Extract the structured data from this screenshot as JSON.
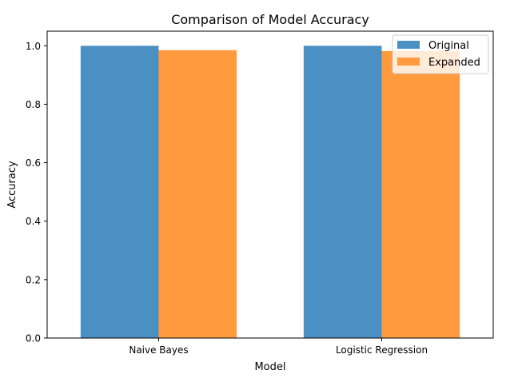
{
  "chart_data": {
    "type": "bar",
    "title": "Comparison of Model Accuracy",
    "xlabel": "Model",
    "ylabel": "Accuracy",
    "categories": [
      "Naive Bayes",
      "Logistic Regression"
    ],
    "series": [
      {
        "name": "Original",
        "values": [
          1.0,
          1.0
        ],
        "color": "#4a90c2"
      },
      {
        "name": "Expanded",
        "values": [
          0.985,
          0.982
        ],
        "color": "#ff9a3f"
      }
    ],
    "ylim": [
      0,
      1.05
    ],
    "yticks": [
      0.0,
      0.2,
      0.4,
      0.6,
      0.8,
      1.0
    ],
    "ytick_labels": [
      "0.0",
      "0.2",
      "0.4",
      "0.6",
      "0.8",
      "1.0"
    ],
    "legend": {
      "position": "top-right"
    },
    "grid": false
  }
}
